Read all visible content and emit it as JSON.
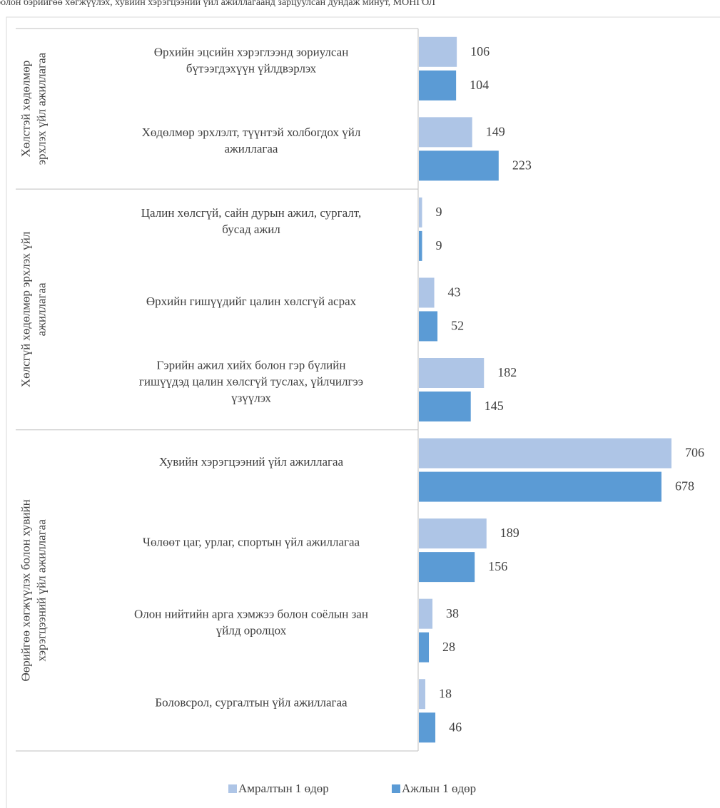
{
  "header_text": "болон бэрийгөө хөгжүүлэх, хувийн хэрэгцээний үйл ажиллагаанд зарцуулсан дундаж минут, МОНГОЛ",
  "chart_data": {
    "type": "bar",
    "orientation": "horizontal",
    "groups": [
      {
        "label": [
          "Хөлстэй хөдөлмөр",
          "эрхлэх үйл ажиллагаа"
        ],
        "categories": [
          {
            "label": [
              "Өрхийн эцсийн хэрэглээнд зориулсан",
              "бүтээгдэхүүн үйлдвэрлэх"
            ],
            "rest": 106,
            "work": 104
          },
          {
            "label": [
              "Хөдөлмөр эрхлэлт, түүнтэй холбогдох үйл",
              "ажиллагаа"
            ],
            "rest": 149,
            "work": 223
          }
        ]
      },
      {
        "label": [
          "Хөлсгүй хөдөлмөр эрхлэх үйл",
          "ажиллагаа"
        ],
        "categories": [
          {
            "label": [
              "Цалин хөлсгүй, сайн дурын ажил, сургалт,",
              "бусад ажил"
            ],
            "rest": 9,
            "work": 9
          },
          {
            "label": [
              "Өрхийн гишүүдийг цалин хөлсгүй асрах"
            ],
            "rest": 43,
            "work": 52
          },
          {
            "label": [
              "Гэрийн ажил хийх болон гэр бүлийн",
              "гишүүдэд цалин хөлсгүй туслах, үйлчилгээ",
              "үзүүлэх"
            ],
            "rest": 182,
            "work": 145
          }
        ]
      },
      {
        "label": [
          "Өөрийгөө хөгжүүлэх болон хувийн",
          "хэрэгцээний үйл ажиллагаа"
        ],
        "categories": [
          {
            "label": [
              "Хувийн хэрэгцээний үйл ажиллагаа"
            ],
            "rest": 706,
            "work": 678
          },
          {
            "label": [
              "Чөлөөт цаг, урлаг, спортын үйл ажиллагаа"
            ],
            "rest": 189,
            "work": 156
          },
          {
            "label": [
              "Олон нийтийн арга хэмжээ болон соёлын зан",
              "үйлд оролцох"
            ],
            "rest": 38,
            "work": 28
          },
          {
            "label": [
              "Боловсрол, сургалтын үйл ажиллагаа"
            ],
            "rest": 18,
            "work": 46
          }
        ]
      }
    ],
    "series": [
      {
        "key": "rest",
        "name": "Амралтын 1 өдөр",
        "color": "#aec5e6"
      },
      {
        "key": "work",
        "name": "Ажлын 1 өдөр",
        "color": "#5b9bd5"
      }
    ],
    "xlim": [
      0,
      706
    ],
    "legend": "bottom"
  }
}
